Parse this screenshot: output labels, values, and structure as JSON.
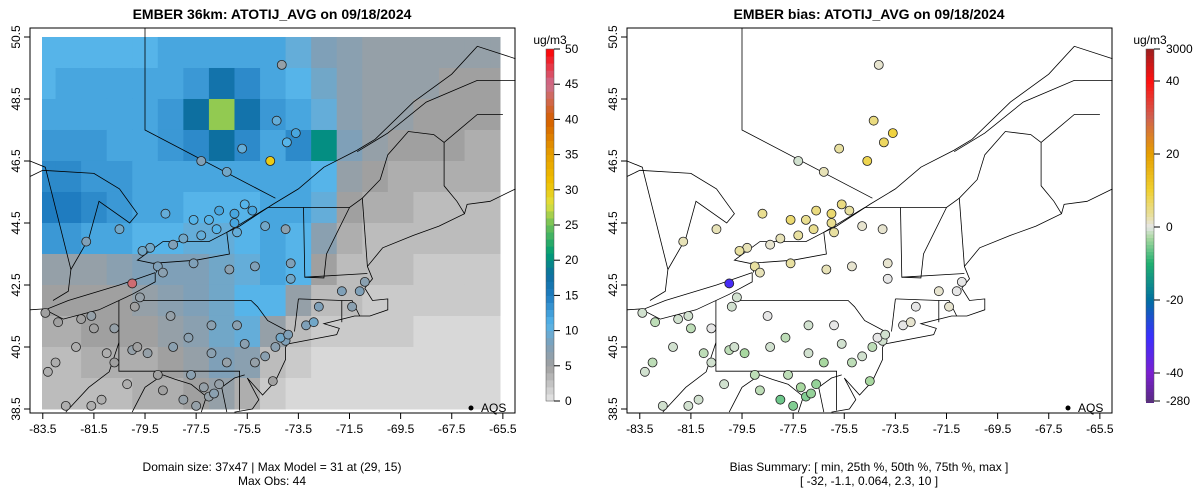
{
  "chart_data": [
    {
      "type": "heatmap",
      "title": "EMBER 36km: ATOTIJ_AVG on 09/18/2024",
      "colorbar_label": "ug/m3",
      "colorbar_ticks": [
        "0",
        "5",
        "10",
        "15",
        "20",
        "25",
        "30",
        "35",
        "40",
        "45",
        "50"
      ],
      "colorbar_range": [
        0,
        50
      ],
      "xticks": [
        "-83.5",
        "-81.5",
        "-79.5",
        "-77.5",
        "-75.5",
        "-73.5",
        "-71.5",
        "-69.5",
        "-67.5",
        "-65.5"
      ],
      "yticks": [
        "38.5",
        "40.5",
        "42.5",
        "44.5",
        "46.5",
        "48.5",
        "50.5"
      ],
      "xlim": [
        -84,
        -65
      ],
      "ylim": [
        38.4,
        50.8
      ],
      "legend": {
        "label": "AQS",
        "placement": "bottom-right"
      },
      "footer": [
        "Domain size: 37x47 | Max Model = 31 at (29, 15)",
        "Max Obs: 44"
      ],
      "model_grid_note": "coarse 1-degree approximation of gridded field, rows from north (lat 50.5) to south, cols from lon -84 eastward",
      "model_grid": [
        [
          11,
          11,
          11,
          11,
          11,
          12,
          12,
          12,
          12,
          12,
          10,
          8,
          7,
          6,
          6,
          6,
          6,
          6,
          6
        ],
        [
          11,
          12,
          12,
          12,
          12,
          12,
          13,
          17,
          14,
          12,
          11,
          9,
          7,
          6,
          6,
          6,
          5,
          5,
          5
        ],
        [
          12,
          12,
          12,
          12,
          12,
          13,
          18,
          26,
          17,
          13,
          12,
          10,
          7,
          6,
          6,
          5,
          5,
          5,
          5
        ],
        [
          13,
          13,
          13,
          12,
          12,
          13,
          14,
          18,
          14,
          12,
          14,
          20,
          8,
          6,
          5,
          5,
          5,
          4,
          4
        ],
        [
          14,
          14,
          13,
          13,
          12,
          12,
          12,
          12,
          12,
          12,
          12,
          11,
          6,
          5,
          4,
          4,
          4,
          4,
          4
        ],
        [
          15,
          15,
          14,
          13,
          12,
          12,
          11,
          11,
          11,
          12,
          12,
          10,
          5,
          4,
          4,
          3,
          3,
          3,
          3
        ],
        [
          13,
          13,
          12,
          12,
          11,
          11,
          10,
          10,
          11,
          12,
          11,
          7,
          4,
          3,
          3,
          3,
          3,
          3,
          3
        ],
        [
          6,
          6,
          6,
          7,
          8,
          8,
          8,
          9,
          10,
          12,
          11,
          5,
          3,
          3,
          3,
          2,
          2,
          2,
          2
        ],
        [
          5,
          5,
          5,
          5,
          6,
          7,
          8,
          9,
          11,
          11,
          6,
          3,
          3,
          2,
          2,
          2,
          2,
          2,
          2
        ],
        [
          4,
          4,
          5,
          5,
          5,
          6,
          7,
          9,
          10,
          6,
          3,
          2,
          2,
          2,
          2,
          1,
          1,
          1,
          1
        ],
        [
          3,
          3,
          4,
          4,
          4,
          5,
          6,
          8,
          7,
          3,
          2,
          1,
          1,
          1,
          1,
          1,
          1,
          1,
          1
        ],
        [
          3,
          3,
          3,
          3,
          4,
          4,
          5,
          6,
          4,
          2,
          1,
          1,
          1,
          1,
          1,
          1,
          1,
          1,
          1
        ]
      ],
      "colors": {
        "stops": [
          [
            0,
            "#e6e6e6"
          ],
          [
            5,
            "#a0a0a0"
          ],
          [
            8,
            "#7fa0b8"
          ],
          [
            11,
            "#56b4e9"
          ],
          [
            15,
            "#1f7cc0"
          ],
          [
            18,
            "#0d6fa0"
          ],
          [
            21,
            "#009e73"
          ],
          [
            25,
            "#6bbf59"
          ],
          [
            28,
            "#e0e040"
          ],
          [
            31,
            "#f0c000"
          ],
          [
            35,
            "#e69f00"
          ],
          [
            40,
            "#d55e00"
          ],
          [
            45,
            "#cc6f8f"
          ],
          [
            50,
            "#ff0000"
          ]
        ]
      }
    },
    {
      "type": "scatter",
      "title": "EMBER bias: ATOTIJ_AVG on 09/18/2024",
      "colorbar_label": "ug/m3",
      "colorbar_ticks": [
        "3000",
        "40",
        "20",
        "0",
        "-20",
        "-40",
        "-280"
      ],
      "colorbar_tick_values": [
        3000,
        40,
        20,
        0,
        -20,
        -40,
        -280
      ],
      "xticks": [
        "-83.5",
        "-81.5",
        "-79.5",
        "-77.5",
        "-75.5",
        "-73.5",
        "-71.5",
        "-69.5",
        "-67.5",
        "-65.5"
      ],
      "yticks": [
        "38.5",
        "40.5",
        "42.5",
        "44.5",
        "46.5",
        "48.5",
        "50.5"
      ],
      "xlim": [
        -84,
        -65
      ],
      "ylim": [
        38.4,
        50.8
      ],
      "legend": {
        "label": "AQS",
        "placement": "bottom-right"
      },
      "footer": [
        "Bias Summary: [ min, 25th %, 50th %, 75th %, max ]",
        "[ -32,   -1.1,   0.064,   2.3,   10 ]"
      ],
      "bias_summary": {
        "min": -32,
        "p25": -1.1,
        "p50": 0.064,
        "p75": 2.3,
        "max": 10
      },
      "colors": {
        "stops": [
          [
            -280,
            "#5b2a86"
          ],
          [
            -40,
            "#7b1fd0"
          ],
          [
            -30,
            "#3a2fff"
          ],
          [
            -20,
            "#0070a0"
          ],
          [
            -10,
            "#20b070"
          ],
          [
            -3,
            "#a8d8a0"
          ],
          [
            0,
            "#e6e6e6"
          ],
          [
            3,
            "#e8e0a0"
          ],
          [
            10,
            "#f0d030"
          ],
          [
            20,
            "#e69f00"
          ],
          [
            30,
            "#d06050"
          ],
          [
            40,
            "#ff1010"
          ],
          [
            3000,
            "#9b2020"
          ]
        ]
      }
    }
  ],
  "stations_fields": [
    "lon",
    "lat",
    "obs",
    "bias"
  ],
  "stations": [
    [
      -74.15,
      49.6,
      6,
      1
    ],
    [
      -77.3,
      46.5,
      8,
      -1
    ],
    [
      -76.3,
      46.15,
      9,
      2
    ],
    [
      -75.7,
      46.9,
      10,
      3
    ],
    [
      -74.6,
      46.5,
      30,
      8
    ],
    [
      -73.6,
      47.4,
      12,
      9
    ],
    [
      -73.95,
      47.1,
      11,
      7
    ],
    [
      -74.35,
      47.8,
      10,
      5
    ],
    [
      -78.7,
      44.8,
      10,
      4
    ],
    [
      -80.5,
      44.3,
      9,
      2
    ],
    [
      -81.8,
      43.9,
      8,
      2
    ],
    [
      -77.6,
      44.6,
      11,
      6
    ],
    [
      -77.0,
      44.6,
      11,
      4
    ],
    [
      -76.6,
      44.9,
      12,
      5
    ],
    [
      -76.0,
      44.8,
      12,
      6
    ],
    [
      -75.6,
      45.1,
      11,
      5
    ],
    [
      -75.3,
      44.9,
      12,
      3
    ],
    [
      -74.8,
      44.4,
      9,
      1
    ],
    [
      -75.9,
      44.2,
      10,
      3
    ],
    [
      -76.7,
      44.3,
      11,
      4
    ],
    [
      -77.3,
      44.1,
      10,
      3
    ],
    [
      -78.0,
      44.0,
      9,
      2
    ],
    [
      -78.4,
      43.8,
      8,
      1
    ],
    [
      -79.3,
      43.7,
      9,
      2
    ],
    [
      -79.6,
      43.6,
      9,
      3
    ],
    [
      -76.0,
      44.5,
      12,
      4
    ],
    [
      -79.0,
      43.1,
      8,
      3
    ],
    [
      -78.8,
      42.9,
      7,
      2
    ],
    [
      -77.6,
      43.2,
      8,
      3
    ],
    [
      -76.2,
      43.0,
      7,
      2
    ],
    [
      -75.2,
      43.1,
      8,
      1
    ],
    [
      -73.8,
      42.7,
      9,
      0
    ],
    [
      -73.8,
      43.2,
      8,
      1
    ],
    [
      -74.0,
      44.3,
      7,
      1
    ],
    [
      -80.0,
      42.55,
      44,
      -32
    ],
    [
      -74.0,
      40.7,
      8,
      -1
    ],
    [
      -74.2,
      40.8,
      9,
      0
    ],
    [
      -73.9,
      40.9,
      8,
      -1
    ],
    [
      -74.4,
      40.5,
      7,
      -2
    ],
    [
      -74.8,
      40.2,
      7,
      -1
    ],
    [
      -74.5,
      39.4,
      5,
      -3
    ],
    [
      -73.2,
      41.2,
      8,
      0
    ],
    [
      -72.9,
      41.3,
      9,
      1
    ],
    [
      -72.7,
      41.8,
      8,
      0
    ],
    [
      -71.4,
      41.8,
      7,
      1
    ],
    [
      -71.1,
      42.3,
      8,
      0
    ],
    [
      -71.8,
      42.3,
      8,
      1
    ],
    [
      -70.9,
      42.6,
      7,
      0
    ],
    [
      -80.0,
      40.4,
      6,
      -2
    ],
    [
      -79.8,
      40.5,
      5,
      -1
    ],
    [
      -79.4,
      40.3,
      6,
      -3
    ],
    [
      -78.4,
      40.5,
      7,
      -1
    ],
    [
      -77.8,
      40.8,
      7,
      -2
    ],
    [
      -76.9,
      40.3,
      7,
      -1
    ],
    [
      -76.3,
      40.0,
      6,
      -3
    ],
    [
      -75.6,
      40.6,
      7,
      -1
    ],
    [
      -75.2,
      40.0,
      6,
      -2
    ],
    [
      -75.9,
      41.2,
      7,
      0
    ],
    [
      -76.9,
      41.2,
      7,
      -1
    ],
    [
      -78.5,
      41.5,
      6,
      0
    ],
    [
      -79.9,
      41.8,
      5,
      -1
    ],
    [
      -79.7,
      42.1,
      6,
      -1
    ],
    [
      -83.4,
      41.6,
      5,
      -1
    ],
    [
      -82.9,
      41.3,
      5,
      -2
    ],
    [
      -82.0,
      41.4,
      5,
      -1
    ],
    [
      -81.6,
      41.5,
      6,
      -1
    ],
    [
      -81.5,
      41.1,
      5,
      -2
    ],
    [
      -80.7,
      41.1,
      6,
      0
    ],
    [
      -83.0,
      40.0,
      4,
      -2
    ],
    [
      -82.2,
      40.5,
      4,
      -1
    ],
    [
      -81.0,
      40.3,
      4,
      -2
    ],
    [
      -83.3,
      39.7,
      4,
      -1
    ],
    [
      -80.7,
      40.0,
      5,
      -1
    ],
    [
      -76.6,
      39.3,
      6,
      -4
    ],
    [
      -77.0,
      38.9,
      6,
      -5
    ],
    [
      -76.8,
      39.0,
      7,
      -4
    ],
    [
      -77.2,
      39.2,
      6,
      -3
    ],
    [
      -77.7,
      39.6,
      7,
      -2
    ],
    [
      -78.0,
      38.8,
      6,
      -6
    ],
    [
      -77.5,
      38.6,
      6,
      -5
    ],
    [
      -79.0,
      39.6,
      5,
      -2
    ],
    [
      -80.2,
      39.3,
      4,
      -1
    ],
    [
      -81.6,
      38.6,
      4,
      -1
    ],
    [
      -82.6,
      38.6,
      4,
      -1
    ],
    [
      -81.2,
      38.8,
      4,
      -1
    ],
    [
      -78.8,
      39.1,
      5,
      -2
    ]
  ]
}
